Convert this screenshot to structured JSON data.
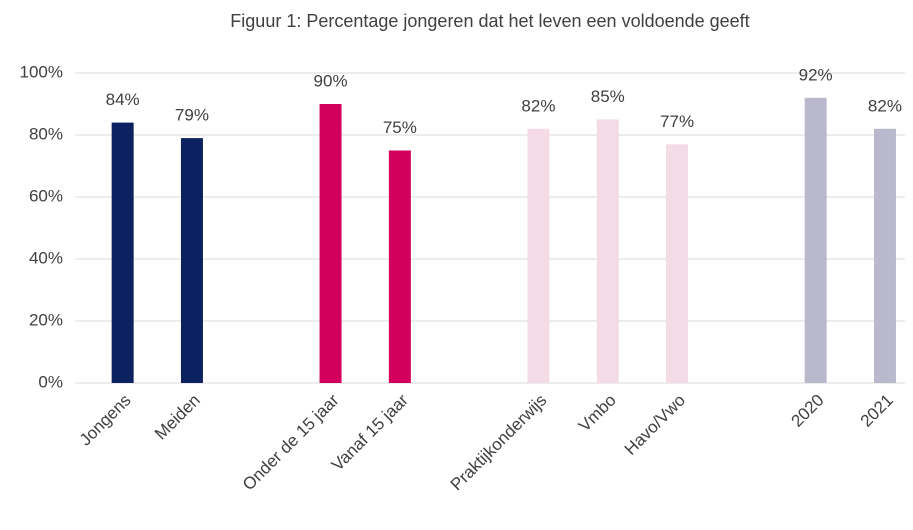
{
  "chart_data": {
    "type": "bar",
    "title": "Figuur 1: Percentage jongeren dat het leven een voldoende geeft",
    "categories": [
      "Jongens",
      "Meiden",
      null,
      "Onder de 15 jaar",
      "Vanaf 15 jaar",
      null,
      "Praktijkonderwijs",
      "Vmbo",
      "Havo/Vwo",
      null,
      "2020",
      "2021"
    ],
    "values": [
      84,
      79,
      null,
      90,
      75,
      null,
      82,
      85,
      77,
      null,
      92,
      82
    ],
    "value_labels": [
      "84%",
      "79%",
      null,
      "90%",
      "75%",
      null,
      "82%",
      "85%",
      "77%",
      null,
      "92%",
      "82%"
    ],
    "colors": [
      "#0c2260",
      "#0c2260",
      null,
      "#d2005c",
      "#d2005c",
      null,
      "#f4dbe5",
      "#f4dbe5",
      "#f4dbe5",
      null,
      "#bab8cc",
      "#bab8cc"
    ],
    "ylim": [
      0,
      100
    ],
    "yticks": [
      {
        "value": 0,
        "label": "0%"
      },
      {
        "value": 20,
        "label": "20%"
      },
      {
        "value": 40,
        "label": "40%"
      },
      {
        "value": 60,
        "label": "60%"
      },
      {
        "value": 80,
        "label": "80%"
      },
      {
        "value": 100,
        "label": "100%"
      }
    ],
    "grid": true
  }
}
